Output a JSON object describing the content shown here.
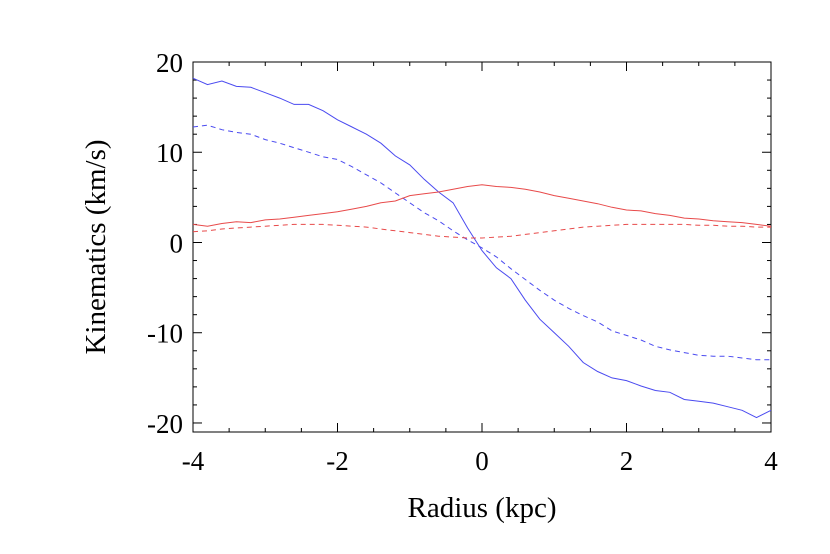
{
  "chart_data": {
    "type": "line",
    "xlabel": "Radius (kpc)",
    "ylabel": "Kinematics (km/s)",
    "xlim": [
      -4,
      4
    ],
    "ylim": [
      -21,
      20
    ],
    "x_ticks": [
      -4,
      -2,
      0,
      2,
      4
    ],
    "x_tick_labels": [
      "-4",
      "-2",
      "0",
      "2",
      "4"
    ],
    "y_ticks": [
      20,
      10,
      0,
      -10,
      -20
    ],
    "y_tick_labels": [
      "20",
      "10",
      "0",
      "-10",
      "-20"
    ],
    "grid": false,
    "legend": "none",
    "series": [
      {
        "color": "#4a4af0",
        "style": "solid",
        "x": [
          -4.0,
          -3.8,
          -3.6,
          -3.4,
          -3.2,
          -3.0,
          -2.8,
          -2.6,
          -2.4,
          -2.2,
          -2.0,
          -1.8,
          -1.6,
          -1.4,
          -1.2,
          -1.0,
          -0.8,
          -0.6,
          -0.4,
          -0.2,
          0.0,
          0.2,
          0.4,
          0.6,
          0.8,
          1.0,
          1.2,
          1.4,
          1.6,
          1.8,
          2.0,
          2.2,
          2.4,
          2.6,
          2.8,
          3.0,
          3.2,
          3.4,
          3.6,
          3.8,
          4.0
        ],
        "y": [
          18.2,
          17.5,
          17.9,
          17.3,
          17.2,
          16.6,
          16.0,
          15.3,
          15.3,
          14.6,
          13.6,
          12.8,
          12.0,
          11.0,
          9.6,
          8.6,
          7.0,
          5.6,
          4.4,
          1.6,
          -0.9,
          -2.8,
          -4.0,
          -6.4,
          -8.5,
          -10.0,
          -11.5,
          -13.3,
          -14.3,
          -15.0,
          -15.3,
          -15.9,
          -16.4,
          -16.6,
          -17.4,
          -17.6,
          -17.8,
          -18.2,
          -18.6,
          -19.4,
          -18.6
        ]
      },
      {
        "color": "#4a4af0",
        "style": "dashed",
        "x": [
          -4.0,
          -3.8,
          -3.6,
          -3.4,
          -3.2,
          -3.0,
          -2.8,
          -2.6,
          -2.4,
          -2.2,
          -2.0,
          -1.8,
          -1.6,
          -1.4,
          -1.2,
          -1.0,
          -0.8,
          -0.6,
          -0.4,
          -0.2,
          0.0,
          0.2,
          0.4,
          0.6,
          0.8,
          1.0,
          1.2,
          1.4,
          1.6,
          1.8,
          2.0,
          2.2,
          2.4,
          2.6,
          2.8,
          3.0,
          3.2,
          3.4,
          3.6,
          3.8,
          4.0
        ],
        "y": [
          12.8,
          13.0,
          12.5,
          12.2,
          12.0,
          11.4,
          11.0,
          10.5,
          10.0,
          9.5,
          9.2,
          8.4,
          7.5,
          6.6,
          5.5,
          4.4,
          3.3,
          2.4,
          1.3,
          0.3,
          -0.6,
          -1.6,
          -2.9,
          -4.1,
          -5.3,
          -6.4,
          -7.3,
          -8.1,
          -8.8,
          -9.8,
          -10.3,
          -10.8,
          -11.5,
          -11.9,
          -12.2,
          -12.5,
          -12.6,
          -12.6,
          -12.8,
          -13.0,
          -13.0
        ]
      },
      {
        "color": "#e84a4a",
        "style": "solid",
        "x": [
          -4.0,
          -3.8,
          -3.6,
          -3.4,
          -3.2,
          -3.0,
          -2.8,
          -2.6,
          -2.4,
          -2.2,
          -2.0,
          -1.8,
          -1.6,
          -1.4,
          -1.2,
          -1.0,
          -0.8,
          -0.6,
          -0.4,
          -0.2,
          0.0,
          0.2,
          0.4,
          0.6,
          0.8,
          1.0,
          1.2,
          1.4,
          1.6,
          1.8,
          2.0,
          2.2,
          2.4,
          2.6,
          2.8,
          3.0,
          3.2,
          3.4,
          3.6,
          3.8,
          4.0
        ],
        "y": [
          2.0,
          1.8,
          2.1,
          2.3,
          2.2,
          2.5,
          2.6,
          2.8,
          3.0,
          3.2,
          3.4,
          3.7,
          4.0,
          4.4,
          4.6,
          5.2,
          5.4,
          5.6,
          5.9,
          6.2,
          6.4,
          6.2,
          6.1,
          5.9,
          5.6,
          5.2,
          4.9,
          4.6,
          4.3,
          3.9,
          3.6,
          3.5,
          3.2,
          3.0,
          2.7,
          2.6,
          2.4,
          2.3,
          2.2,
          2.0,
          1.8
        ]
      },
      {
        "color": "#e84a4a",
        "style": "dashed",
        "x": [
          -4.0,
          -3.8,
          -3.6,
          -3.4,
          -3.2,
          -3.0,
          -2.8,
          -2.6,
          -2.4,
          -2.2,
          -2.0,
          -1.8,
          -1.6,
          -1.4,
          -1.2,
          -1.0,
          -0.8,
          -0.6,
          -0.4,
          -0.2,
          0.0,
          0.2,
          0.4,
          0.6,
          0.8,
          1.0,
          1.2,
          1.4,
          1.6,
          1.8,
          2.0,
          2.2,
          2.4,
          2.6,
          2.8,
          3.0,
          3.2,
          3.4,
          3.6,
          3.8,
          4.0
        ],
        "y": [
          1.2,
          1.3,
          1.5,
          1.6,
          1.7,
          1.8,
          1.9,
          2.0,
          2.0,
          2.0,
          1.9,
          1.8,
          1.7,
          1.5,
          1.3,
          1.1,
          0.9,
          0.7,
          0.6,
          0.5,
          0.5,
          0.6,
          0.7,
          0.9,
          1.1,
          1.3,
          1.5,
          1.7,
          1.8,
          1.9,
          2.0,
          2.0,
          2.0,
          2.0,
          2.0,
          1.9,
          1.9,
          1.8,
          1.8,
          1.7,
          1.7
        ]
      }
    ]
  }
}
